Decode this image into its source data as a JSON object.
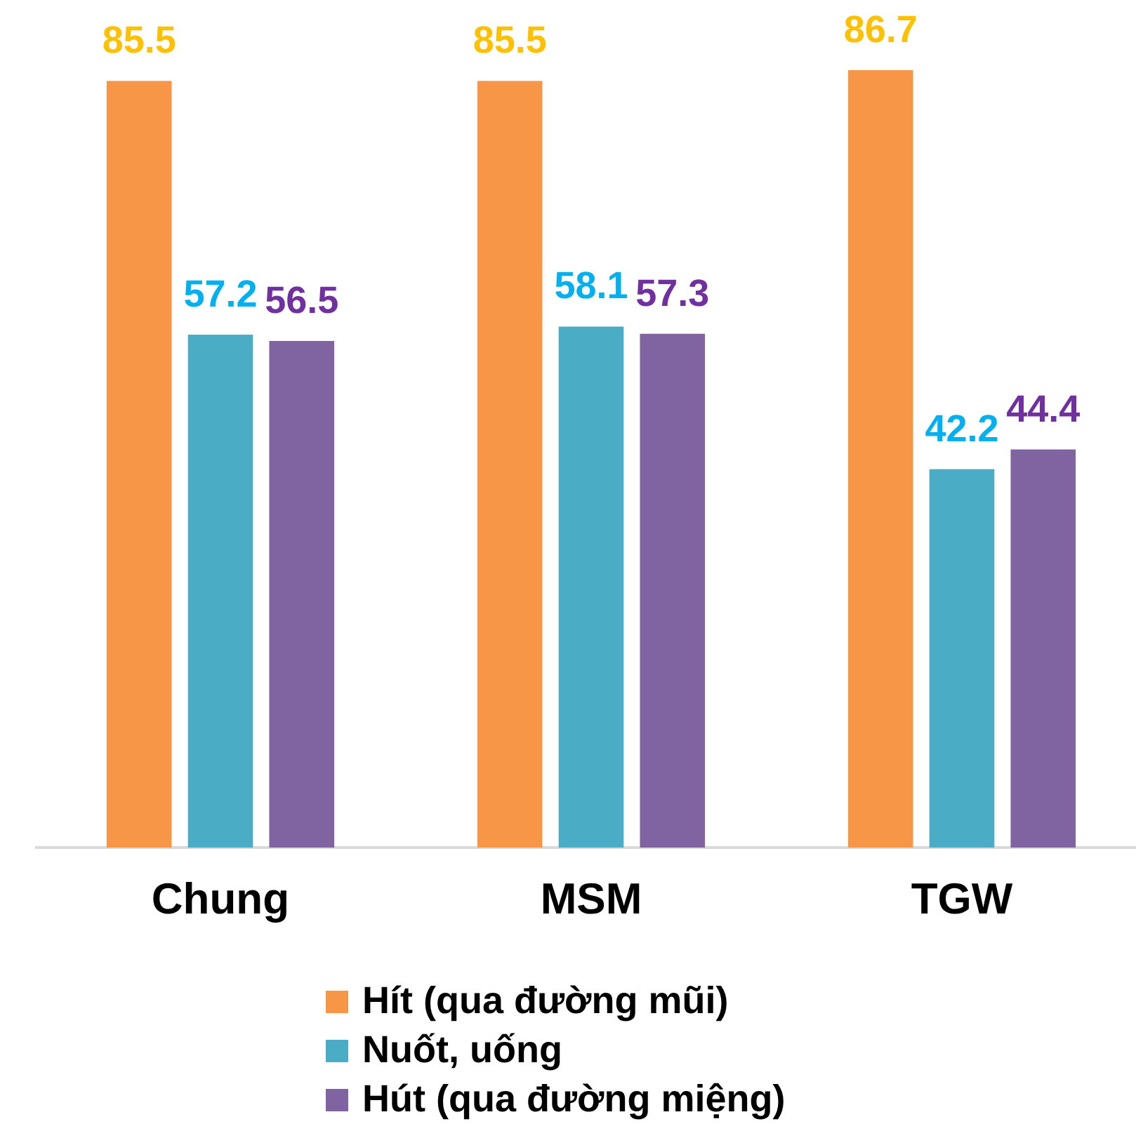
{
  "chart_data": {
    "type": "bar",
    "categories": [
      "Chung",
      "MSM",
      "TGW"
    ],
    "series": [
      {
        "name": "Hít (qua đường mũi)",
        "color": "#f79646",
        "values": [
          85.5,
          85.5,
          86.7
        ]
      },
      {
        "name": "Nuốt, uống",
        "color": "#4bacc6",
        "values": [
          57.2,
          58.1,
          42.2
        ]
      },
      {
        "name": "Hút (qua đường miệng)",
        "color": "#8064a2",
        "values": [
          56.5,
          57.3,
          44.4
        ]
      }
    ],
    "data_labels": true,
    "legend": "bottom",
    "tick_labels": "x"
  }
}
